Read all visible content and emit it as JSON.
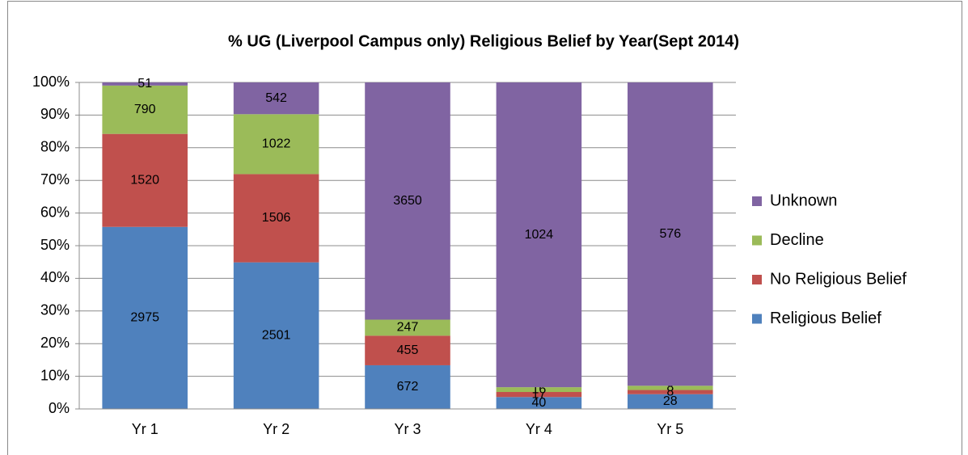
{
  "chart_data": {
    "type": "bar",
    "stacking": "percent",
    "title": "% UG (Liverpool Campus only) Religious Belief by Year(Sept 2014)",
    "categories": [
      "Yr 1",
      "Yr 2",
      "Yr 3",
      "Yr 4",
      "Yr 5"
    ],
    "series": [
      {
        "name": "Religious Belief",
        "color": "#4f81bd",
        "values": [
          2975,
          2501,
          672,
          40,
          28
        ]
      },
      {
        "name": "No Religious Belief",
        "color": "#c0504d",
        "values": [
          1520,
          1506,
          455,
          17,
          8
        ]
      },
      {
        "name": "Decline",
        "color": "#9bbb59",
        "values": [
          790,
          1022,
          247,
          16,
          8
        ]
      },
      {
        "name": "Unknown",
        "color": "#8064a2",
        "values": [
          51,
          542,
          3650,
          1024,
          576
        ]
      }
    ],
    "ylim": [
      0,
      100
    ],
    "yticks": [
      {
        "value": 0,
        "label": "0%"
      },
      {
        "value": 10,
        "label": "10%"
      },
      {
        "value": 20,
        "label": "20%"
      },
      {
        "value": 30,
        "label": "30%"
      },
      {
        "value": 40,
        "label": "40%"
      },
      {
        "value": 50,
        "label": "50%"
      },
      {
        "value": 60,
        "label": "60%"
      },
      {
        "value": 70,
        "label": "70%"
      },
      {
        "value": 80,
        "label": "80%"
      },
      {
        "value": 90,
        "label": "90%"
      },
      {
        "value": 100,
        "label": "100%"
      }
    ],
    "grid": true,
    "legend": "right"
  }
}
